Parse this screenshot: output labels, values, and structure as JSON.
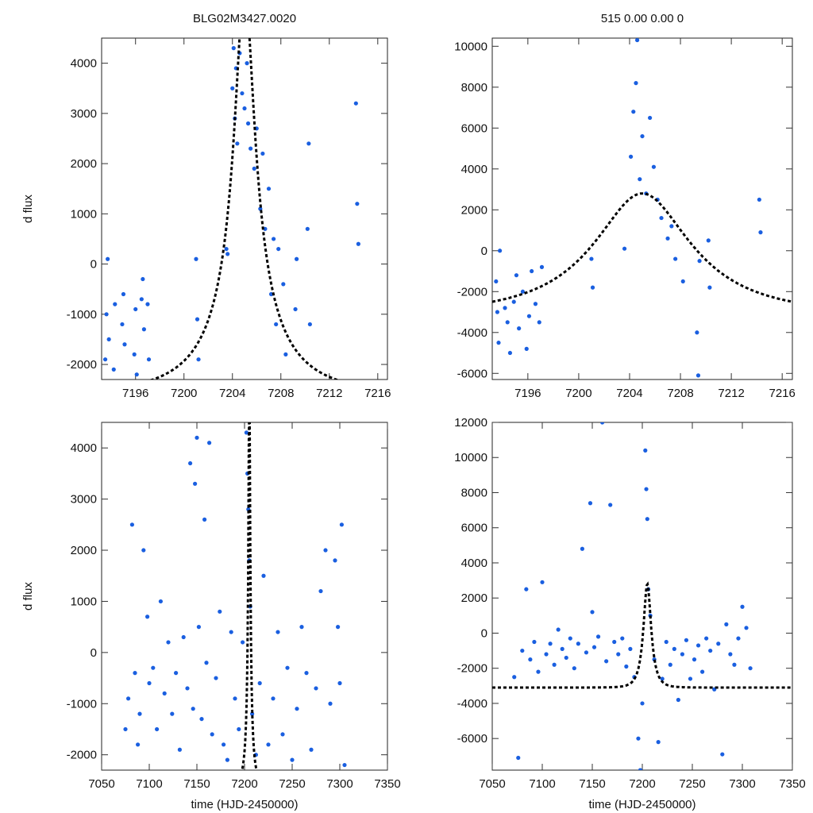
{
  "colors": {
    "points": "#1a5fe0",
    "model": "#000000",
    "frame": "#222222"
  },
  "chart_data": [
    {
      "type": "scatter",
      "title": "BLG02M3427.0020",
      "xlabel": "",
      "ylabel": "d flux",
      "xlim": [
        7193.2,
        7216.8
      ],
      "ylim": [
        -2300,
        4500
      ],
      "xticks": [
        7196,
        7200,
        7204,
        7208,
        7212,
        7216
      ],
      "xtick_labels": [
        "7196",
        "7200",
        "7204",
        "7208",
        "7212",
        "7216"
      ],
      "yticks": [
        -2000,
        -1000,
        0,
        1000,
        2000,
        3000,
        4000
      ],
      "ytick_labels": [
        "-2000",
        "-1000",
        "0",
        "1000",
        "2000",
        "3000",
        "4000"
      ],
      "model": {
        "label": "model",
        "t0": 7205.0,
        "amplitude": 5500,
        "u0": 0.115,
        "tE": 7.0,
        "base": -2600
      },
      "series": [
        {
          "name": "observations",
          "x": [
            7193.5,
            7193.6,
            7193.7,
            7193.8,
            7194.2,
            7194.3,
            7194.9,
            7195.0,
            7195.1,
            7195.9,
            7196.0,
            7196.1,
            7196.5,
            7196.6,
            7196.7,
            7197.0,
            7197.1,
            7201.0,
            7201.1,
            7201.2,
            7203.5,
            7203.6,
            7204.0,
            7204.1,
            7204.2,
            7204.3,
            7204.4,
            7204.6,
            7204.8,
            7205.0,
            7205.2,
            7205.3,
            7205.5,
            7205.8,
            7206.0,
            7206.3,
            7206.5,
            7206.7,
            7207.0,
            7207.2,
            7207.4,
            7207.6,
            7207.8,
            7208.2,
            7208.4,
            7209.2,
            7209.3,
            7210.2,
            7210.3,
            7210.4,
            7214.2,
            7214.3,
            7214.4
          ],
          "y": [
            -1900,
            -1000,
            100,
            -1500,
            -2100,
            -800,
            -1200,
            -600,
            -1600,
            -1800,
            -900,
            -2200,
            -700,
            -300,
            -1300,
            -800,
            -1900,
            100,
            -1100,
            -1900,
            300,
            200,
            3500,
            4300,
            2900,
            3900,
            2400,
            4200,
            3400,
            3100,
            4000,
            2800,
            2300,
            1900,
            2700,
            1100,
            2200,
            700,
            1500,
            -600,
            500,
            -1200,
            300,
            -400,
            -1800,
            -900,
            100,
            700,
            2400,
            -1200,
            3200,
            1200,
            400
          ]
        }
      ]
    },
    {
      "type": "scatter",
      "title": "515  0.00  0.00  0",
      "xlabel": "",
      "ylabel": "",
      "xlim": [
        7193.2,
        7216.8
      ],
      "ylim": [
        -6300,
        10400
      ],
      "xticks": [
        7196,
        7200,
        7204,
        7208,
        7212,
        7216
      ],
      "xtick_labels": [
        "7196",
        "7200",
        "7204",
        "7208",
        "7212",
        "7216"
      ],
      "yticks": [
        -6000,
        -4000,
        -2000,
        0,
        2000,
        4000,
        6000,
        8000,
        10000
      ],
      "ytick_labels": [
        "-6000",
        "-4000",
        "-2000",
        "0",
        "2000",
        "4000",
        "6000",
        "8000",
        "10000"
      ],
      "model": {
        "label": "model",
        "t0": 7205.0,
        "amplitude": 2800,
        "u0": 0.5,
        "tE": 8.0,
        "base": -3100
      },
      "series": [
        {
          "name": "observations",
          "x": [
            7193.5,
            7193.6,
            7193.7,
            7193.8,
            7194.2,
            7194.4,
            7194.6,
            7194.9,
            7195.1,
            7195.3,
            7195.6,
            7195.9,
            7196.1,
            7196.3,
            7196.6,
            7196.9,
            7197.1,
            7201.0,
            7201.1,
            7203.6,
            7204.1,
            7204.3,
            7204.5,
            7204.6,
            7204.8,
            7205.0,
            7205.3,
            7205.6,
            7205.9,
            7206.2,
            7206.5,
            7207.0,
            7207.3,
            7207.6,
            7208.2,
            7209.3,
            7209.4,
            7209.5,
            7210.2,
            7210.3,
            7214.2,
            7214.3
          ],
          "y": [
            -1500,
            -3000,
            -4500,
            0,
            -2800,
            -3500,
            -5000,
            -2500,
            -1200,
            -3800,
            -2000,
            -4800,
            -3200,
            -1000,
            -2600,
            -3500,
            -800,
            -400,
            -1800,
            100,
            4600,
            6800,
            8200,
            10300,
            3500,
            5600,
            2800,
            6500,
            4100,
            2500,
            1600,
            600,
            1200,
            -400,
            -1500,
            -4000,
            -6100,
            -500,
            500,
            -1800,
            2500,
            900
          ]
        }
      ]
    },
    {
      "type": "scatter",
      "title": "",
      "xlabel": "time (HJD-2450000)",
      "ylabel": "d flux",
      "xlim": [
        7050,
        7350
      ],
      "ylim": [
        -2300,
        4500
      ],
      "xticks": [
        7050,
        7100,
        7150,
        7200,
        7250,
        7300,
        7350
      ],
      "xtick_labels": [
        "7050",
        "7100",
        "7150",
        "7200",
        "7250",
        "7300",
        "7350"
      ],
      "yticks": [
        -2000,
        -1000,
        0,
        1000,
        2000,
        3000,
        4000
      ],
      "ytick_labels": [
        "-2000",
        "-1000",
        "0",
        "1000",
        "2000",
        "3000",
        "4000"
      ],
      "model": {
        "label": "model",
        "t0": 7205.0,
        "amplitude": 5500,
        "u0": 0.115,
        "tE": 7.0,
        "base": -2600
      },
      "series": [
        {
          "name": "observations",
          "x": [
            7075,
            7078,
            7082,
            7085,
            7088,
            7090,
            7094,
            7098,
            7100,
            7104,
            7108,
            7112,
            7116,
            7120,
            7124,
            7128,
            7132,
            7136,
            7140,
            7143,
            7146,
            7148,
            7150,
            7152,
            7155,
            7158,
            7160,
            7163,
            7166,
            7170,
            7174,
            7178,
            7182,
            7186,
            7190,
            7194,
            7198,
            7202,
            7203,
            7204,
            7205,
            7206,
            7208,
            7212,
            7216,
            7220,
            7225,
            7230,
            7235,
            7240,
            7245,
            7250,
            7255,
            7260,
            7265,
            7270,
            7275,
            7280,
            7285,
            7290,
            7295,
            7298,
            7300,
            7302,
            7305
          ],
          "y": [
            -1500,
            -900,
            2500,
            -400,
            -1800,
            -1200,
            2000,
            700,
            -600,
            -300,
            -1500,
            1000,
            -800,
            200,
            -1200,
            -400,
            -1900,
            300,
            -700,
            3700,
            -1100,
            3300,
            4200,
            500,
            -1300,
            2600,
            -200,
            4100,
            -1600,
            -500,
            800,
            -1800,
            -2100,
            400,
            -900,
            -1500,
            200,
            4300,
            3500,
            2800,
            1800,
            900,
            -1200,
            -2000,
            -600,
            1500,
            -1800,
            -900,
            400,
            -1600,
            -300,
            -2100,
            -1100,
            500,
            -400,
            -1900,
            -700,
            1200,
            2000,
            -1000,
            1800,
            500,
            -600,
            2500,
            -2200
          ]
        }
      ]
    },
    {
      "type": "scatter",
      "title": "",
      "xlabel": "time (HJD-2450000)",
      "ylabel": "",
      "xlim": [
        7050,
        7350
      ],
      "ylim": [
        -7800,
        12000
      ],
      "xticks": [
        7050,
        7100,
        7150,
        7200,
        7250,
        7300,
        7350
      ],
      "xtick_labels": [
        "7050",
        "7100",
        "7150",
        "7200",
        "7250",
        "7300",
        "7350"
      ],
      "yticks": [
        -6000,
        -4000,
        -2000,
        0,
        2000,
        4000,
        6000,
        8000,
        10000,
        12000
      ],
      "ytick_labels": [
        "-6000",
        "-4000",
        "-2000",
        "0",
        "2000",
        "4000",
        "6000",
        "8000",
        "10000",
        "12000"
      ],
      "model": {
        "label": "model",
        "t0": 7205.0,
        "amplitude": 2800,
        "u0": 0.5,
        "tE": 8.0,
        "base": -3100
      },
      "series": [
        {
          "name": "observations",
          "x": [
            7072,
            7076,
            7080,
            7084,
            7088,
            7092,
            7096,
            7100,
            7104,
            7108,
            7112,
            7116,
            7120,
            7124,
            7128,
            7132,
            7136,
            7140,
            7144,
            7148,
            7150,
            7152,
            7156,
            7160,
            7164,
            7168,
            7172,
            7176,
            7180,
            7184,
            7188,
            7192,
            7196,
            7198,
            7200,
            7203,
            7204,
            7205,
            7206,
            7208,
            7212,
            7216,
            7220,
            7224,
            7228,
            7232,
            7236,
            7240,
            7244,
            7248,
            7252,
            7256,
            7260,
            7264,
            7268,
            7272,
            7276,
            7280,
            7284,
            7288,
            7292,
            7296,
            7300,
            7304,
            7308
          ],
          "y": [
            -2500,
            -7100,
            -1000,
            2500,
            -1500,
            -500,
            -2200,
            2900,
            -1200,
            -600,
            -1800,
            200,
            -900,
            -1400,
            -300,
            -2000,
            -600,
            4800,
            -1100,
            7400,
            1200,
            -800,
            -200,
            12000,
            -1600,
            7300,
            -500,
            -1200,
            -300,
            -1900,
            -900,
            -2500,
            -6000,
            -7800,
            -4000,
            10400,
            8200,
            6500,
            2500,
            1000,
            -1500,
            -6200,
            -2600,
            -500,
            -1800,
            -900,
            -3800,
            -1200,
            -400,
            -2600,
            -1500,
            -700,
            -2200,
            -300,
            -1000,
            -3200,
            -600,
            -6900,
            500,
            -1200,
            -1800,
            -300,
            1500,
            300,
            -2000
          ]
        }
      ]
    }
  ]
}
